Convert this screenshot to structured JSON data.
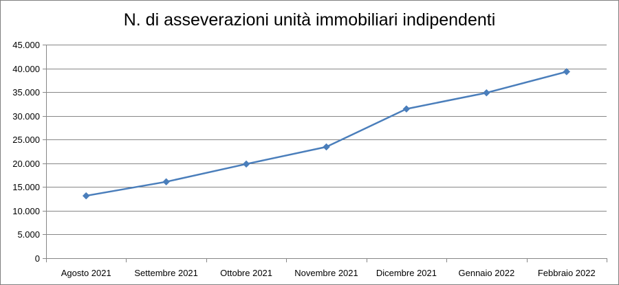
{
  "chart_data": {
    "type": "line",
    "title": "N. di asseverazioni unità immobiliari indipendenti",
    "categories": [
      "Agosto 2021",
      "Settembre 2021",
      "Ottobre 2021",
      "Novembre 2021",
      "Dicembre 2021",
      "Gennaio 2022",
      "Febbraio 2022"
    ],
    "series": [
      {
        "values": [
          13150,
          16100,
          19850,
          23450,
          31450,
          34850,
          39300
        ]
      }
    ],
    "ylim": [
      0,
      45000
    ],
    "y_ticks": [
      0,
      5000,
      10000,
      15000,
      20000,
      25000,
      30000,
      35000,
      40000,
      45000
    ],
    "y_tick_labels": [
      "0",
      "5.000",
      "10.000",
      "15.000",
      "20.000",
      "25.000",
      "30.000",
      "35.000",
      "40.000",
      "45.000"
    ],
    "grid": true,
    "legend": "none",
    "colors": {
      "series": "#4a7ebb",
      "grid": "#868686",
      "axis": "#868686"
    }
  }
}
